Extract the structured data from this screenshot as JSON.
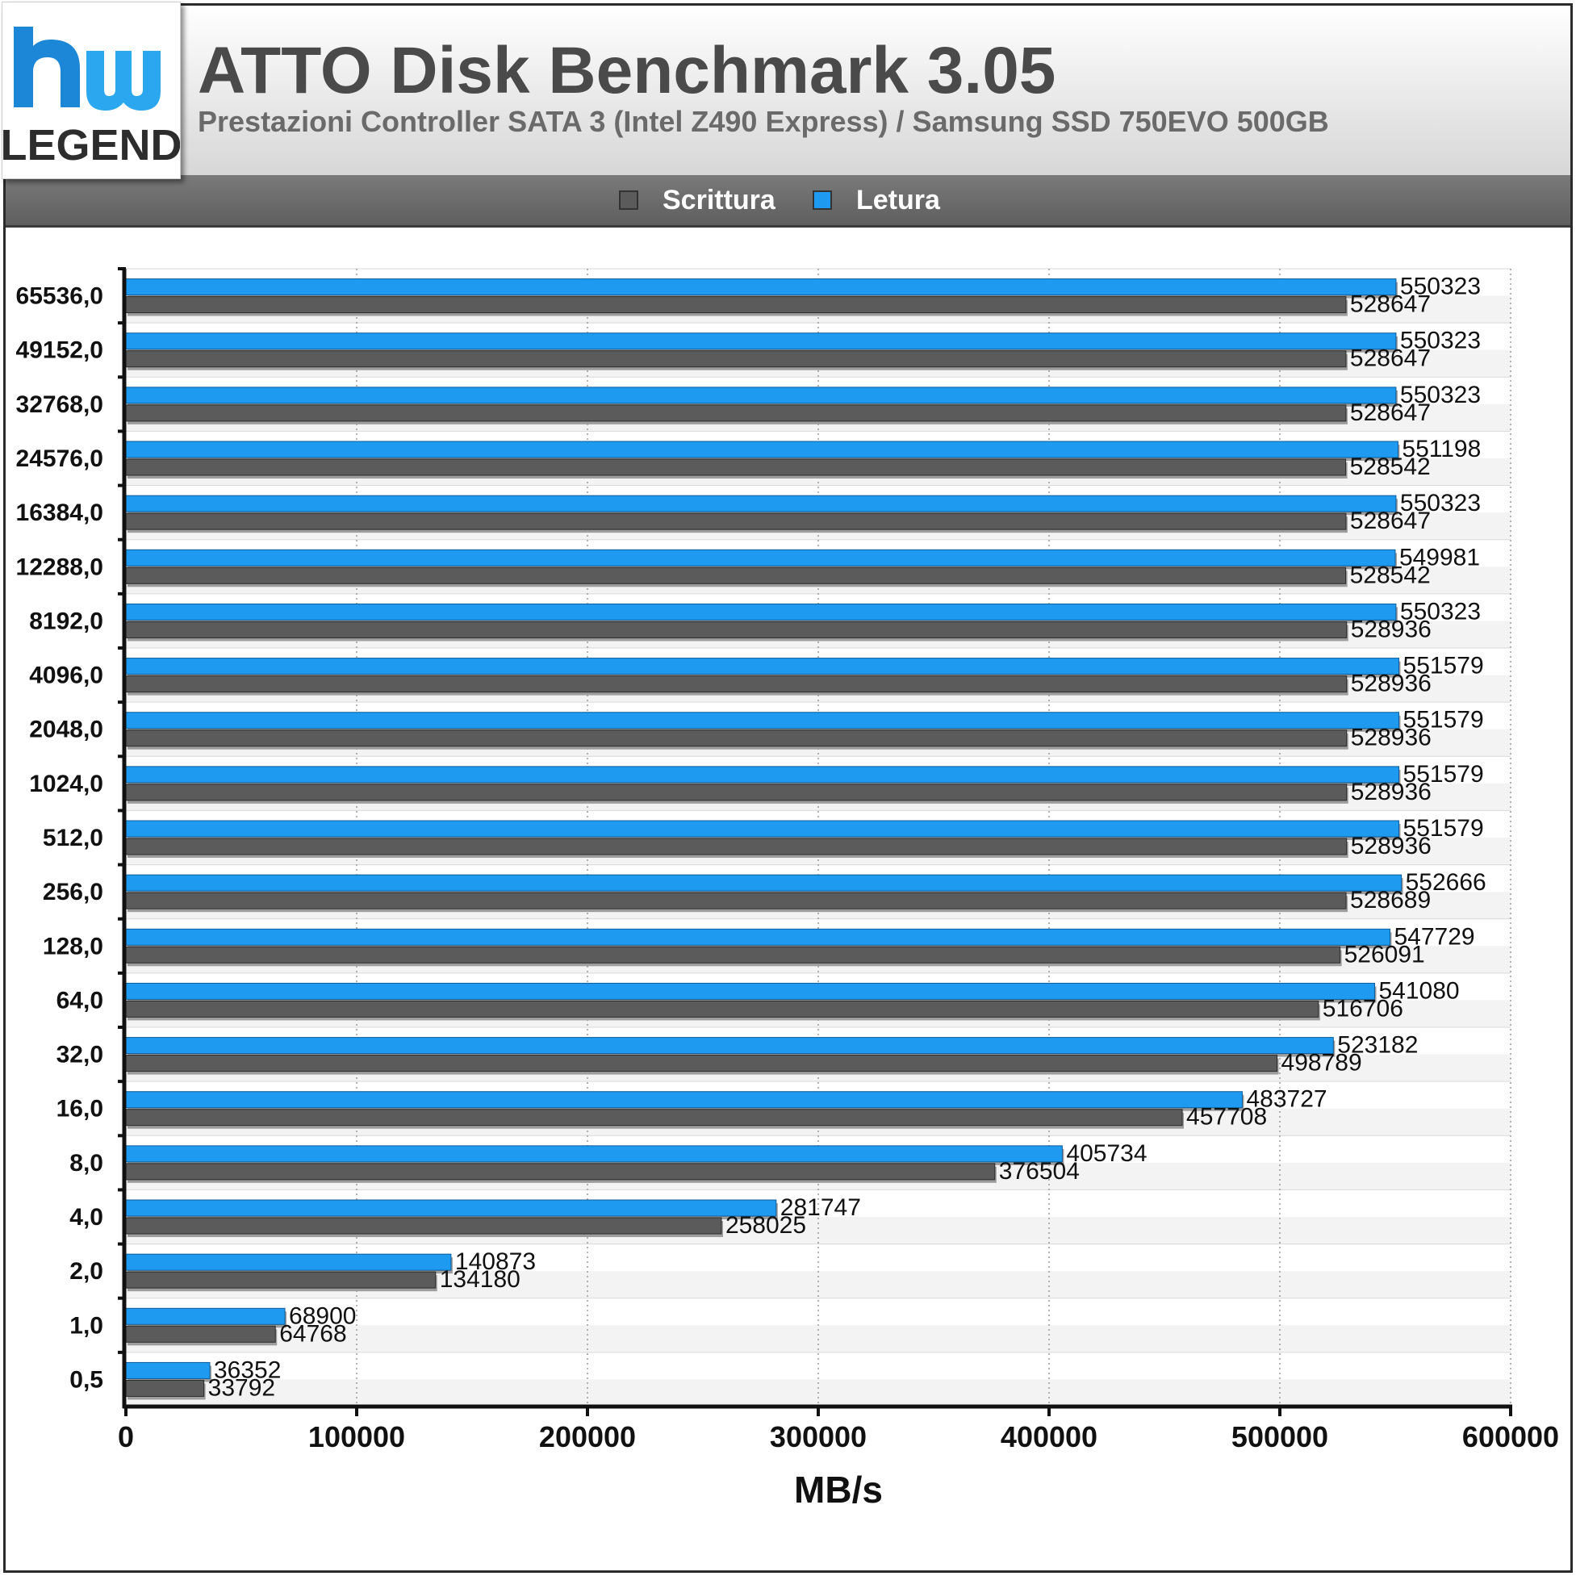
{
  "header": {
    "logo_text_top": "hw",
    "logo_text_bottom": "LEGEND",
    "title": "ATTO Disk Benchmark 3.05",
    "subtitle": "Prestazioni Controller SATA 3 (Intel Z490 Express) / Samsung SSD 750EVO 500GB"
  },
  "legend": [
    {
      "label": "Scrittura",
      "color": "#5b5b5b"
    },
    {
      "label": "Letura",
      "color": "#1e9bf0"
    }
  ],
  "chart_data": {
    "type": "bar",
    "orientation": "horizontal",
    "title": "ATTO Disk Benchmark 3.05",
    "subtitle": "Prestazioni Controller SATA 3 (Intel Z490 Express) / Samsung SSD 750EVO 500GB",
    "xlabel": "MB/s",
    "ylabel": "",
    "xlim": [
      0,
      600000
    ],
    "xticks": [
      "0",
      "100000",
      "200000",
      "300000",
      "400000",
      "500000",
      "600000"
    ],
    "legend_position": "top",
    "grid": true,
    "categories": [
      "65536,0",
      "49152,0",
      "32768,0",
      "24576,0",
      "16384,0",
      "12288,0",
      "8192,0",
      "4096,0",
      "2048,0",
      "1024,0",
      "512,0",
      "256,0",
      "128,0",
      "64,0",
      "32,0",
      "16,0",
      "8,0",
      "4,0",
      "2,0",
      "1,0",
      "0,5"
    ],
    "series": [
      {
        "name": "Letura",
        "color": "#1e9bf0",
        "values": [
          550323,
          550323,
          550323,
          551198,
          550323,
          549981,
          550323,
          551579,
          551579,
          551579,
          551579,
          552666,
          547729,
          541080,
          523182,
          483727,
          405734,
          281747,
          140873,
          68900,
          36352
        ]
      },
      {
        "name": "Scrittura",
        "color": "#5b5b5b",
        "values": [
          528647,
          528647,
          528647,
          528542,
          528647,
          528542,
          528936,
          528936,
          528936,
          528936,
          528936,
          528689,
          526091,
          516706,
          498789,
          457708,
          376504,
          258025,
          134180,
          64768,
          33792
        ]
      }
    ]
  }
}
